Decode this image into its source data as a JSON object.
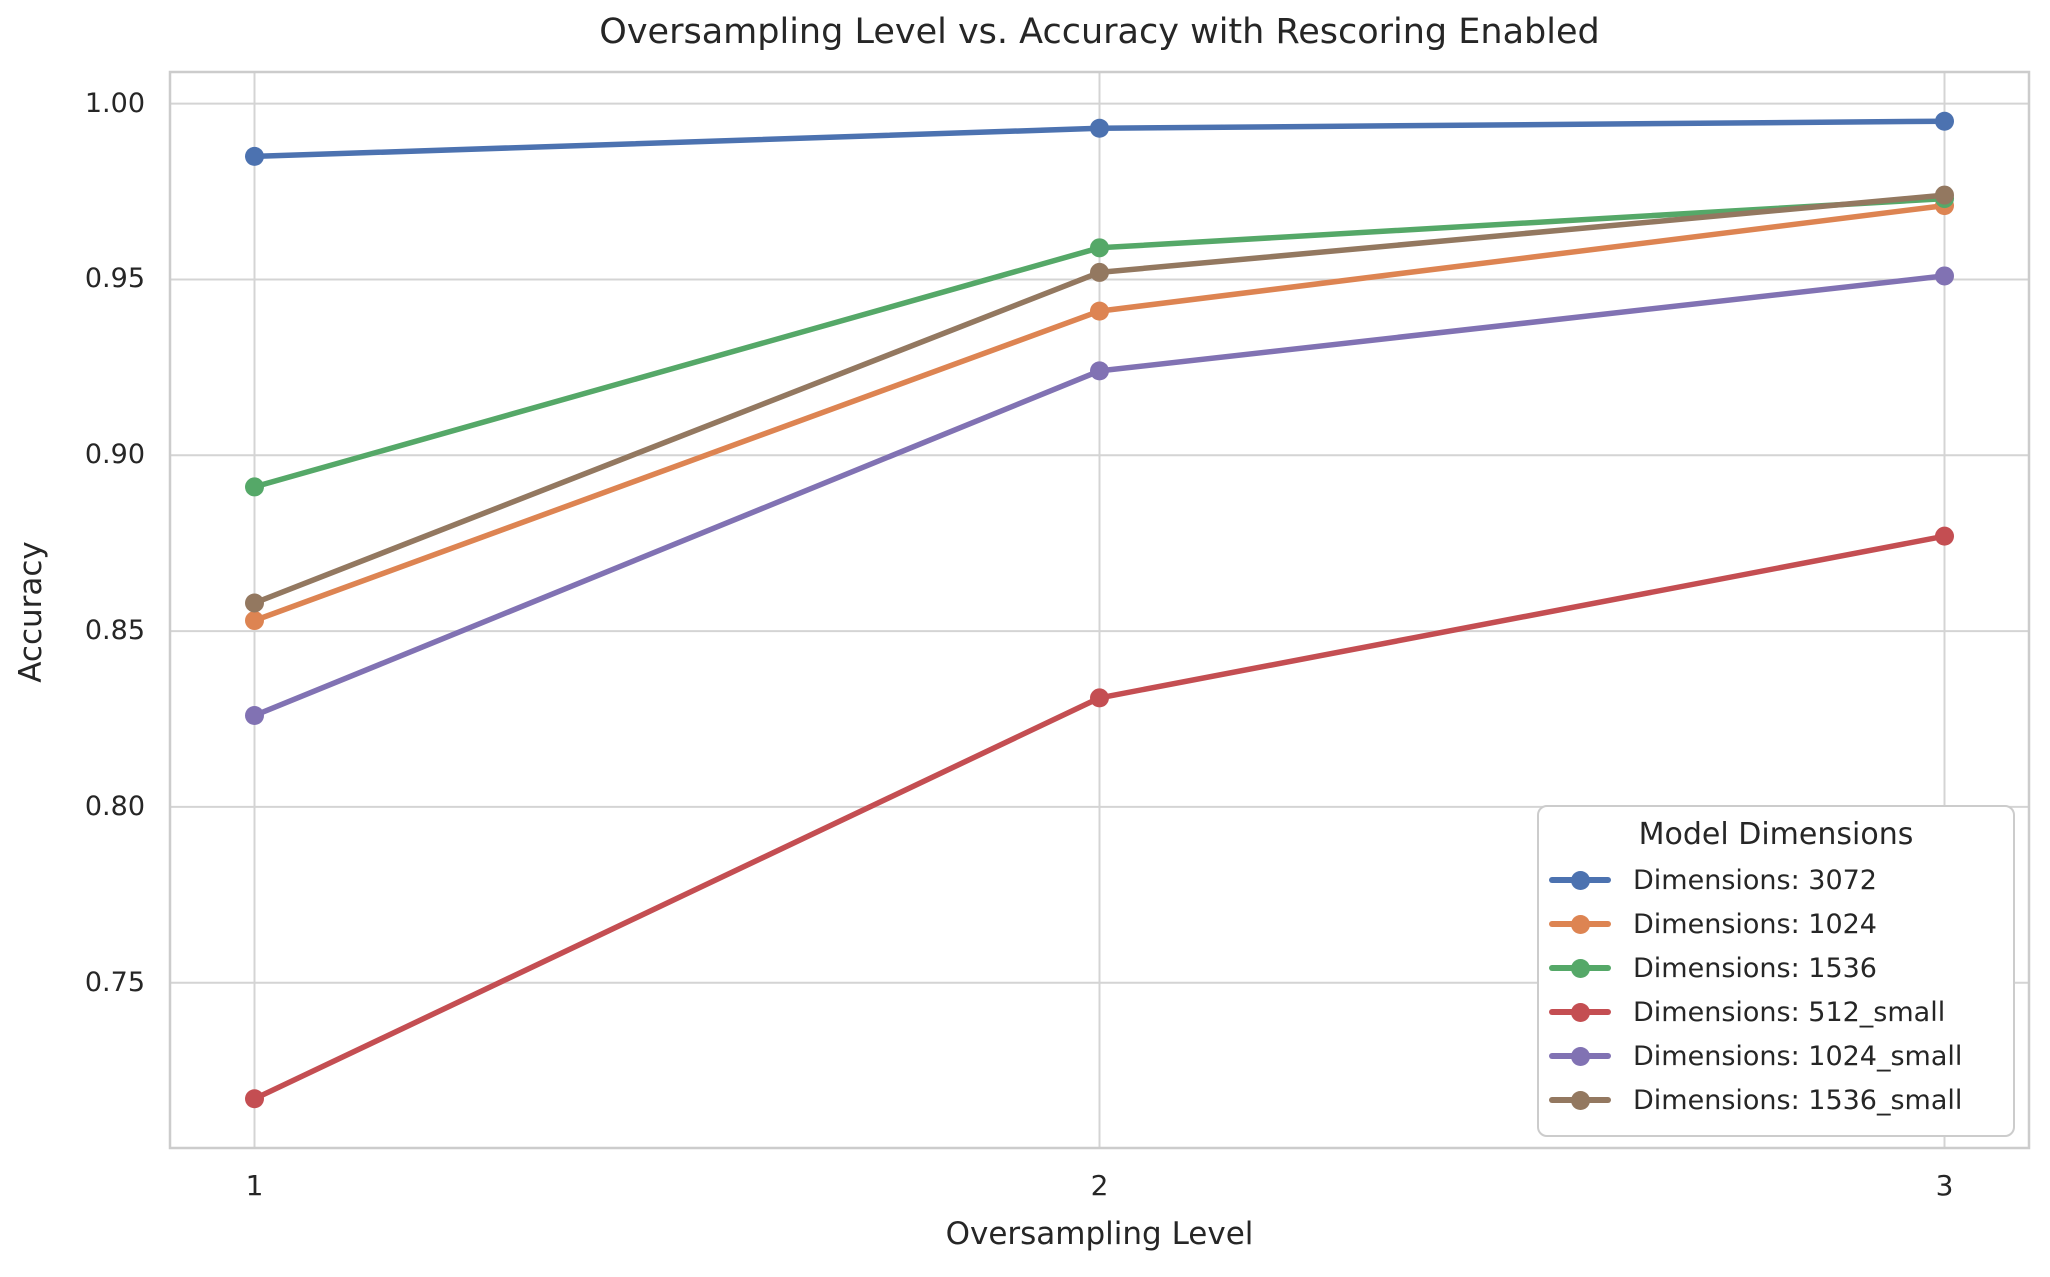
{
  "chart_data": {
    "type": "line",
    "title": "Oversampling Level vs. Accuracy with Rescoring Enabled",
    "xlabel": "Oversampling Level",
    "ylabel": "Accuracy",
    "x": [
      1,
      2,
      3
    ],
    "xtick_labels": [
      "1",
      "2",
      "3"
    ],
    "yticks": [
      1.0,
      0.95,
      0.9,
      0.85,
      0.8,
      0.75
    ],
    "xlim": [
      0.9,
      3.1
    ],
    "ylim": [
      0.703,
      1.009
    ],
    "grid": true,
    "background_color": "#ffffff",
    "grid_color": "#d4d4d4",
    "spine_color": "#cccccc",
    "text_color": "#262626",
    "legend": {
      "title": "Model Dimensions",
      "position": "lower right"
    },
    "series": [
      {
        "name": "Dimensions: 3072",
        "color": "#4C72B0",
        "values": [
          0.985,
          0.993,
          0.995
        ]
      },
      {
        "name": "Dimensions: 1024",
        "color": "#DD8452",
        "values": [
          0.853,
          0.941,
          0.971
        ]
      },
      {
        "name": "Dimensions: 1536",
        "color": "#55A868",
        "values": [
          0.891,
          0.959,
          0.973
        ]
      },
      {
        "name": "Dimensions: 512_small",
        "color": "#C44E52",
        "values": [
          0.717,
          0.831,
          0.877
        ]
      },
      {
        "name": "Dimensions: 1024_small",
        "color": "#8172B3",
        "values": [
          0.826,
          0.924,
          0.951
        ]
      },
      {
        "name": "Dimensions: 1536_small",
        "color": "#937860",
        "values": [
          0.858,
          0.952,
          0.974
        ]
      }
    ]
  }
}
